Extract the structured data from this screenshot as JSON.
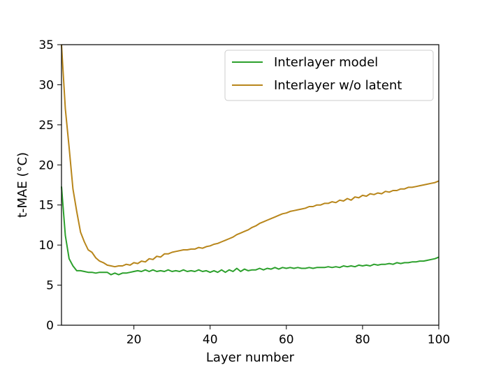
{
  "chart_data": {
    "type": "line",
    "title": "",
    "xlabel": "Layer number",
    "ylabel": "t-MAE (°C)",
    "xlim": [
      1,
      100
    ],
    "ylim": [
      0,
      35
    ],
    "xticks": [
      20,
      40,
      60,
      80,
      100
    ],
    "yticks": [
      0,
      5,
      10,
      15,
      20,
      25,
      30,
      35
    ],
    "grid": false,
    "legend": {
      "position": "top-right"
    },
    "series": [
      {
        "name": "Interlayer model",
        "color": "#2ca02c",
        "x": [
          1,
          2,
          3,
          4,
          5,
          6,
          7,
          8,
          9,
          10,
          11,
          12,
          13,
          14,
          15,
          16,
          17,
          18,
          19,
          20,
          21,
          22,
          23,
          24,
          25,
          26,
          27,
          28,
          29,
          30,
          31,
          32,
          33,
          34,
          35,
          36,
          37,
          38,
          39,
          40,
          41,
          42,
          43,
          44,
          45,
          46,
          47,
          48,
          49,
          50,
          51,
          52,
          53,
          54,
          55,
          56,
          57,
          58,
          59,
          60,
          61,
          62,
          63,
          64,
          65,
          66,
          67,
          68,
          69,
          70,
          71,
          72,
          73,
          74,
          75,
          76,
          77,
          78,
          79,
          80,
          81,
          82,
          83,
          84,
          85,
          86,
          87,
          88,
          89,
          90,
          91,
          92,
          93,
          94,
          95,
          96,
          97,
          98,
          99,
          100
        ],
        "y": [
          17.3,
          11.2,
          8.3,
          7.4,
          6.8,
          6.8,
          6.7,
          6.6,
          6.6,
          6.5,
          6.6,
          6.6,
          6.6,
          6.3,
          6.5,
          6.3,
          6.5,
          6.5,
          6.6,
          6.7,
          6.8,
          6.7,
          6.9,
          6.7,
          6.9,
          6.7,
          6.8,
          6.7,
          6.9,
          6.7,
          6.8,
          6.7,
          6.9,
          6.7,
          6.8,
          6.7,
          6.9,
          6.7,
          6.8,
          6.6,
          6.8,
          6.6,
          6.9,
          6.6,
          6.9,
          6.7,
          7.1,
          6.7,
          7.0,
          6.8,
          6.9,
          6.9,
          7.1,
          6.9,
          7.1,
          7.0,
          7.2,
          7.0,
          7.2,
          7.1,
          7.2,
          7.1,
          7.2,
          7.1,
          7.1,
          7.2,
          7.1,
          7.2,
          7.2,
          7.2,
          7.3,
          7.2,
          7.3,
          7.2,
          7.4,
          7.3,
          7.4,
          7.3,
          7.5,
          7.4,
          7.5,
          7.4,
          7.6,
          7.5,
          7.6,
          7.6,
          7.7,
          7.6,
          7.8,
          7.7,
          7.8,
          7.8,
          7.9,
          7.9,
          8.0,
          8.0,
          8.1,
          8.2,
          8.3,
          8.5
        ]
      },
      {
        "name": "Interlayer w/o latent",
        "color": "#b8861b",
        "x": [
          1,
          2,
          3,
          4,
          5,
          6,
          7,
          8,
          9,
          10,
          11,
          12,
          13,
          14,
          15,
          16,
          17,
          18,
          19,
          20,
          21,
          22,
          23,
          24,
          25,
          26,
          27,
          28,
          29,
          30,
          31,
          32,
          33,
          34,
          35,
          36,
          37,
          38,
          39,
          40,
          41,
          42,
          43,
          44,
          45,
          46,
          47,
          48,
          49,
          50,
          51,
          52,
          53,
          54,
          55,
          56,
          57,
          58,
          59,
          60,
          61,
          62,
          63,
          64,
          65,
          66,
          67,
          68,
          69,
          70,
          71,
          72,
          73,
          74,
          75,
          76,
          77,
          78,
          79,
          80,
          81,
          82,
          83,
          84,
          85,
          86,
          87,
          88,
          89,
          90,
          91,
          92,
          93,
          94,
          95,
          96,
          97,
          98,
          99,
          100
        ],
        "y": [
          35,
          27,
          22.2,
          17,
          14.2,
          11.6,
          10.4,
          9.4,
          9.1,
          8.4,
          8.0,
          7.8,
          7.5,
          7.4,
          7.3,
          7.4,
          7.4,
          7.6,
          7.5,
          7.8,
          7.7,
          8.0,
          7.9,
          8.3,
          8.2,
          8.6,
          8.5,
          8.9,
          8.9,
          9.1,
          9.2,
          9.3,
          9.4,
          9.4,
          9.5,
          9.5,
          9.7,
          9.6,
          9.8,
          9.9,
          10.1,
          10.2,
          10.4,
          10.6,
          10.8,
          11.0,
          11.3,
          11.5,
          11.7,
          11.9,
          12.2,
          12.4,
          12.7,
          12.9,
          13.1,
          13.3,
          13.5,
          13.7,
          13.9,
          14.0,
          14.2,
          14.3,
          14.4,
          14.5,
          14.6,
          14.8,
          14.8,
          15.0,
          15.0,
          15.2,
          15.2,
          15.4,
          15.3,
          15.6,
          15.5,
          15.8,
          15.6,
          16.0,
          15.9,
          16.2,
          16.1,
          16.4,
          16.3,
          16.5,
          16.4,
          16.7,
          16.6,
          16.8,
          16.8,
          17.0,
          17.0,
          17.2,
          17.2,
          17.3,
          17.4,
          17.5,
          17.6,
          17.7,
          17.8,
          18.0
        ]
      }
    ]
  }
}
